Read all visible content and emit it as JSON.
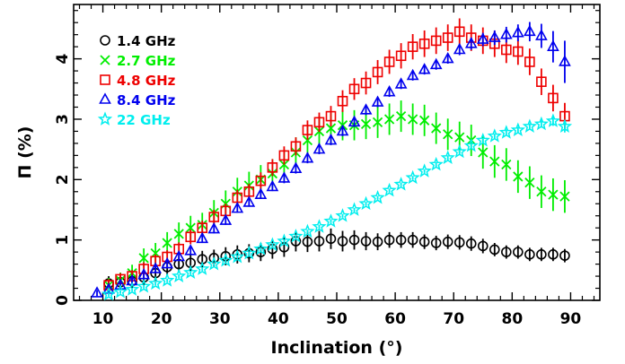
{
  "chart_data": {
    "type": "scatter",
    "xlabel": "Inclination (°)",
    "ylabel": "Π (%)",
    "xlim": [
      5,
      95
    ],
    "ylim": [
      0,
      4.9
    ],
    "xticks": [
      10,
      20,
      30,
      40,
      50,
      60,
      70,
      80,
      90
    ],
    "yticks": [
      0,
      1,
      2,
      3,
      4
    ],
    "legend_position": "top-left",
    "series": [
      {
        "name": "1.4 GHz",
        "marker": "circle",
        "color": "#000000",
        "x": [
          11,
          13,
          15,
          17,
          19,
          21,
          23,
          25,
          27,
          29,
          31,
          33,
          35,
          37,
          39,
          41,
          43,
          45,
          47,
          49,
          51,
          53,
          55,
          57,
          59,
          61,
          63,
          65,
          67,
          69,
          71,
          73,
          75,
          77,
          79,
          81,
          83,
          85,
          87,
          89
        ],
        "y": [
          0.28,
          0.3,
          0.32,
          0.38,
          0.45,
          0.55,
          0.6,
          0.62,
          0.68,
          0.7,
          0.73,
          0.76,
          0.78,
          0.8,
          0.85,
          0.88,
          0.98,
          0.97,
          0.98,
          1.02,
          0.98,
          1.0,
          0.98,
          0.97,
          1.0,
          1.0,
          1.0,
          0.97,
          0.95,
          0.97,
          0.96,
          0.94,
          0.9,
          0.84,
          0.8,
          0.8,
          0.76,
          0.76,
          0.76,
          0.74
        ],
        "err": [
          0.12,
          0.12,
          0.12,
          0.12,
          0.13,
          0.13,
          0.14,
          0.14,
          0.14,
          0.14,
          0.15,
          0.15,
          0.15,
          0.15,
          0.16,
          0.16,
          0.17,
          0.17,
          0.17,
          0.17,
          0.17,
          0.16,
          0.15,
          0.14,
          0.13,
          0.13,
          0.13,
          0.12,
          0.12,
          0.12,
          0.12,
          0.12,
          0.12,
          0.11,
          0.11,
          0.11,
          0.11,
          0.11,
          0.11,
          0.11
        ]
      },
      {
        "name": "2.7 GHz",
        "marker": "cross",
        "color": "#00ee00",
        "x": [
          11,
          13,
          15,
          17,
          19,
          21,
          23,
          25,
          27,
          29,
          31,
          33,
          35,
          37,
          39,
          41,
          43,
          45,
          47,
          49,
          51,
          53,
          55,
          57,
          59,
          61,
          63,
          65,
          67,
          69,
          71,
          73,
          75,
          77,
          79,
          81,
          83,
          85,
          87,
          89
        ],
        "y": [
          0.25,
          0.33,
          0.45,
          0.7,
          0.78,
          0.95,
          1.1,
          1.2,
          1.25,
          1.45,
          1.6,
          1.8,
          1.9,
          2.0,
          2.1,
          2.25,
          2.45,
          2.65,
          2.8,
          2.85,
          2.9,
          2.9,
          2.92,
          2.95,
          3.0,
          3.05,
          3.0,
          2.98,
          2.85,
          2.75,
          2.7,
          2.65,
          2.45,
          2.3,
          2.25,
          2.05,
          1.95,
          1.8,
          1.75,
          1.72
        ],
        "err": [
          0.12,
          0.13,
          0.14,
          0.16,
          0.17,
          0.18,
          0.19,
          0.2,
          0.2,
          0.21,
          0.22,
          0.23,
          0.23,
          0.24,
          0.24,
          0.25,
          0.25,
          0.25,
          0.25,
          0.25,
          0.25,
          0.25,
          0.25,
          0.26,
          0.26,
          0.26,
          0.26,
          0.26,
          0.26,
          0.26,
          0.26,
          0.26,
          0.27,
          0.27,
          0.27,
          0.27,
          0.27,
          0.27,
          0.27,
          0.27
        ]
      },
      {
        "name": "4.8 GHz",
        "marker": "square",
        "color": "#ee0000",
        "x": [
          11,
          13,
          15,
          17,
          19,
          21,
          23,
          25,
          27,
          29,
          31,
          33,
          35,
          37,
          39,
          41,
          43,
          45,
          47,
          49,
          51,
          53,
          55,
          57,
          59,
          61,
          63,
          65,
          67,
          69,
          71,
          73,
          75,
          77,
          79,
          81,
          83,
          85,
          87,
          89
        ],
        "y": [
          0.25,
          0.35,
          0.4,
          0.52,
          0.65,
          0.72,
          0.85,
          1.05,
          1.2,
          1.38,
          1.48,
          1.7,
          1.8,
          1.98,
          2.2,
          2.4,
          2.55,
          2.82,
          2.95,
          3.05,
          3.3,
          3.5,
          3.6,
          3.78,
          3.95,
          4.05,
          4.2,
          4.25,
          4.3,
          4.35,
          4.45,
          4.35,
          4.3,
          4.25,
          4.15,
          4.12,
          3.95,
          3.62,
          3.35,
          3.05
        ],
        "err": [
          0.1,
          0.1,
          0.1,
          0.11,
          0.11,
          0.11,
          0.11,
          0.12,
          0.12,
          0.12,
          0.12,
          0.13,
          0.13,
          0.14,
          0.14,
          0.15,
          0.15,
          0.16,
          0.16,
          0.17,
          0.18,
          0.18,
          0.19,
          0.2,
          0.2,
          0.21,
          0.21,
          0.22,
          0.22,
          0.22,
          0.22,
          0.22,
          0.22,
          0.22,
          0.22,
          0.22,
          0.22,
          0.22,
          0.22,
          0.22
        ]
      },
      {
        "name": "8.4 GHz",
        "marker": "triangle",
        "color": "#0000ee",
        "x": [
          9,
          11,
          13,
          15,
          17,
          19,
          21,
          23,
          25,
          27,
          29,
          31,
          33,
          35,
          37,
          39,
          41,
          43,
          45,
          47,
          49,
          51,
          53,
          55,
          57,
          59,
          61,
          63,
          65,
          67,
          69,
          71,
          73,
          75,
          77,
          79,
          81,
          83,
          85,
          87,
          89
        ],
        "y": [
          0.12,
          0.18,
          0.25,
          0.32,
          0.42,
          0.52,
          0.6,
          0.72,
          0.82,
          1.02,
          1.18,
          1.32,
          1.52,
          1.62,
          1.75,
          1.88,
          2.02,
          2.18,
          2.35,
          2.5,
          2.65,
          2.8,
          2.95,
          3.15,
          3.28,
          3.45,
          3.58,
          3.72,
          3.82,
          3.9,
          4.0,
          4.15,
          4.25,
          4.32,
          4.35,
          4.4,
          4.43,
          4.45,
          4.38,
          4.2,
          3.95
        ],
        "err": [
          0.05,
          0.05,
          0.05,
          0.05,
          0.05,
          0.06,
          0.06,
          0.06,
          0.06,
          0.06,
          0.07,
          0.07,
          0.07,
          0.07,
          0.07,
          0.07,
          0.08,
          0.08,
          0.08,
          0.08,
          0.08,
          0.08,
          0.08,
          0.08,
          0.08,
          0.08,
          0.08,
          0.08,
          0.08,
          0.08,
          0.08,
          0.09,
          0.1,
          0.11,
          0.12,
          0.13,
          0.14,
          0.16,
          0.2,
          0.26,
          0.35
        ]
      },
      {
        "name": "22 GHz",
        "marker": "star",
        "color": "#00eeee",
        "x": [
          11,
          13,
          15,
          17,
          19,
          21,
          23,
          25,
          27,
          29,
          31,
          33,
          35,
          37,
          39,
          41,
          43,
          45,
          47,
          49,
          51,
          53,
          55,
          57,
          59,
          61,
          63,
          65,
          67,
          69,
          71,
          73,
          75,
          77,
          79,
          81,
          83,
          85,
          87,
          89
        ],
        "y": [
          0.1,
          0.14,
          0.18,
          0.23,
          0.28,
          0.33,
          0.4,
          0.46,
          0.52,
          0.6,
          0.66,
          0.72,
          0.78,
          0.85,
          0.92,
          0.98,
          1.06,
          1.14,
          1.22,
          1.31,
          1.4,
          1.5,
          1.6,
          1.7,
          1.82,
          1.92,
          2.03,
          2.14,
          2.25,
          2.36,
          2.46,
          2.56,
          2.65,
          2.72,
          2.78,
          2.82,
          2.88,
          2.92,
          2.97,
          2.88
        ],
        "err": [
          0.03,
          0.03,
          0.03,
          0.03,
          0.03,
          0.03,
          0.03,
          0.03,
          0.03,
          0.03,
          0.03,
          0.03,
          0.03,
          0.03,
          0.03,
          0.03,
          0.03,
          0.03,
          0.03,
          0.03,
          0.03,
          0.03,
          0.03,
          0.03,
          0.03,
          0.03,
          0.03,
          0.03,
          0.04,
          0.04,
          0.04,
          0.04,
          0.04,
          0.04,
          0.05,
          0.05,
          0.05,
          0.06,
          0.08,
          0.1
        ]
      }
    ]
  }
}
